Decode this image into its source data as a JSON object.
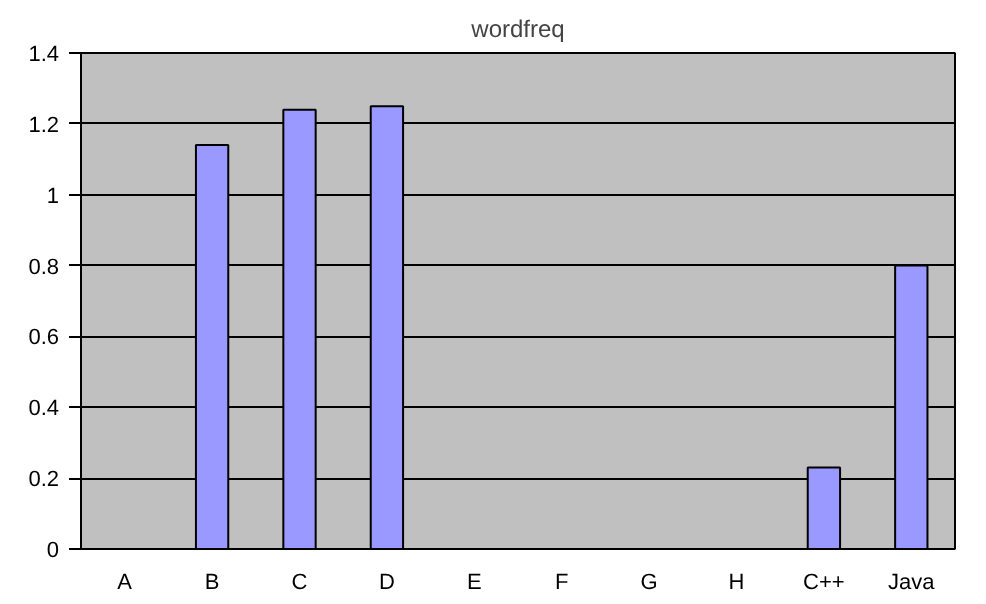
{
  "chart_data": {
    "type": "bar",
    "title": "wordfreq",
    "categories": [
      "A",
      "B",
      "C",
      "D",
      "E",
      "F",
      "G",
      "H",
      "C++",
      "Java"
    ],
    "values": [
      null,
      1.14,
      1.24,
      1.25,
      null,
      null,
      null,
      null,
      0.23,
      0.8
    ],
    "color": "#9999ff",
    "ylim": [
      0,
      1.4
    ],
    "yticks": [
      0,
      0.2,
      0.4,
      0.6,
      0.8,
      1,
      1.2,
      1.4
    ],
    "grid": "y"
  }
}
